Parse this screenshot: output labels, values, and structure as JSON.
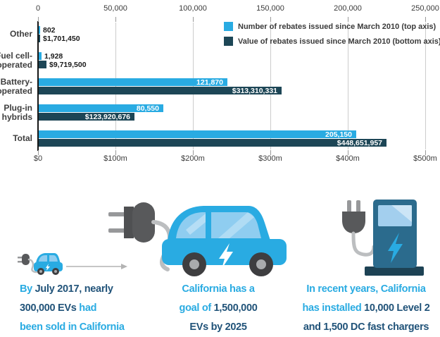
{
  "colors": {
    "series_light": "#29abe2",
    "series_dark": "#1d4656",
    "fact_light": "#29abe2",
    "fact_dark": "#215379",
    "grid": "#cccccc",
    "axis_text": "#3b3b3b",
    "station_body": "#2b6b8d",
    "station_base": "#1d4254",
    "plug_gray": "#58595b",
    "cable_gray": "#bcbec0",
    "window_blue": "#8fcdf0"
  },
  "chart_data": {
    "type": "bar",
    "orientation": "horizontal",
    "title": "",
    "categories": [
      "Other",
      "Fuel cell-operated",
      "Battery-operated",
      "Plug-in hybrids",
      "Total"
    ],
    "categories_display": [
      [
        "Other"
      ],
      [
        "Fuel cell-",
        "operated"
      ],
      [
        "Battery-",
        "operated"
      ],
      [
        "Plug-in",
        "hybrids"
      ],
      [
        "Total"
      ]
    ],
    "series": [
      {
        "name": "Number of rebates issued since March 2010 (top axis)",
        "axis": "top",
        "color": "#29abe2",
        "values": [
          802,
          1928,
          121870,
          80550,
          205150
        ],
        "labels": [
          "802",
          "1,928",
          "121,870",
          "80,550",
          "205,150"
        ]
      },
      {
        "name": "Value of rebates issued since March 2010 (bottom axis)",
        "axis": "bottom",
        "color": "#1d4656",
        "values": [
          1701450,
          9719500,
          313310331,
          123920676,
          448651957
        ],
        "labels": [
          "$1,701,450",
          "$9,719,500",
          "$313,310,331",
          "$123,920,676",
          "$448,651,957"
        ]
      }
    ],
    "top_axis": {
      "ticks": [
        "0",
        "50,000",
        "100,000",
        "150,000",
        "200,000",
        "250,000"
      ],
      "range": [
        0,
        250000
      ]
    },
    "bottom_axis": {
      "ticks": [
        "$0",
        "$100m",
        "$200m",
        "$300m",
        "$400m",
        "$500m"
      ],
      "range": [
        0,
        500000000
      ]
    },
    "grid": true,
    "legend_position": "top-right"
  },
  "icons": {
    "left": "ev-car-small-with-plug",
    "left_arrow": "arrow-right",
    "middle": "ev-car-with-charging-plug",
    "right": "ev-charging-station-with-plug"
  },
  "facts": [
    {
      "lines": [
        [
          {
            "t": "By ",
            "c": "light"
          },
          {
            "t": "July 2017, nearly",
            "c": "dark"
          }
        ],
        [
          {
            "t": "300,000 EVs",
            "c": "dark"
          },
          {
            "t": " had",
            "c": "light"
          }
        ],
        [
          {
            "t": "been sold in California",
            "c": "light"
          }
        ]
      ]
    },
    {
      "lines": [
        [
          {
            "t": "California has a",
            "c": "light"
          }
        ],
        [
          {
            "t": "goal of ",
            "c": "light"
          },
          {
            "t": "1,500,000",
            "c": "dark"
          }
        ],
        [
          {
            "t": "EVs by 2025",
            "c": "dark"
          }
        ]
      ]
    },
    {
      "lines": [
        [
          {
            "t": "In recent years, California",
            "c": "light"
          }
        ],
        [
          {
            "t": "has installed ",
            "c": "light"
          },
          {
            "t": "10,000 Level 2",
            "c": "dark"
          }
        ],
        [
          {
            "t": "and 1,500 DC fast chargers",
            "c": "dark"
          }
        ]
      ]
    }
  ]
}
